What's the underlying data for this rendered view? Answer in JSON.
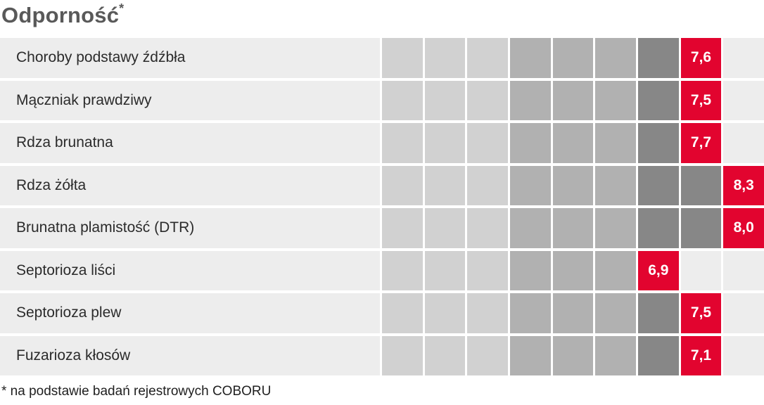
{
  "title": {
    "text": "Odporność",
    "superscript": "*"
  },
  "footnote": "* na podstawie badań rejestrowych COBORU",
  "colors": {
    "accent_red": "#e2042f",
    "cell_light": "#d1d1d1",
    "cell_medium": "#b1b1b1",
    "cell_dark": "#878787",
    "row_background": "#ededed",
    "grid_gap": "#ffffff",
    "title_text": "#595959",
    "label_text": "#2b2b2b",
    "value_text": "#ffffff"
  },
  "scale": {
    "columns": 9,
    "column_shades": [
      "light",
      "light",
      "light",
      "medium",
      "medium",
      "medium",
      "dark",
      "dark",
      "dark"
    ]
  },
  "rows": [
    {
      "label": "Choroby podstawy źdźbła",
      "value": 7.6,
      "value_label": "7,6",
      "box_column": 8
    },
    {
      "label": "Mączniak prawdziwy",
      "value": 7.5,
      "value_label": "7,5",
      "box_column": 8
    },
    {
      "label": "Rdza brunatna",
      "value": 7.7,
      "value_label": "7,7",
      "box_column": 8
    },
    {
      "label": "Rdza żółta",
      "value": 8.3,
      "value_label": "8,3",
      "box_column": 9
    },
    {
      "label": "Brunatna plamistość (DTR)",
      "value": 8.0,
      "value_label": "8,0",
      "box_column": 9
    },
    {
      "label": "Septorioza liści",
      "value": 6.9,
      "value_label": "6,9",
      "box_column": 7
    },
    {
      "label": "Septorioza plew",
      "value": 7.5,
      "value_label": "7,5",
      "box_column": 8
    },
    {
      "label": "Fuzarioza kłosów",
      "value": 7.1,
      "value_label": "7,1",
      "box_column": 8
    }
  ],
  "chart_data": {
    "type": "bar",
    "orientation": "horizontal",
    "title": "Odporność*",
    "categories": [
      "Choroby podstawy źdźbła",
      "Mączniak prawdziwy",
      "Rdza brunatna",
      "Rdza żółta",
      "Brunatna plamistość (DTR)",
      "Septorioza liści",
      "Septorioza plew",
      "Fuzarioza kłosów"
    ],
    "values": [
      7.6,
      7.5,
      7.7,
      8.3,
      8.0,
      6.9,
      7.5,
      7.1
    ],
    "value_labels": [
      "7,6",
      "7,5",
      "7,7",
      "8,3",
      "8,0",
      "6,9",
      "7,5",
      "7,1"
    ],
    "xlabel": "",
    "ylabel": "",
    "xlim": [
      0,
      9
    ],
    "grid": true,
    "legend": false,
    "annotations": "wartości w czerwonych polach; skala 9-stopniowa",
    "footnote": "* na podstawie badań rejestrowych COBORU"
  }
}
